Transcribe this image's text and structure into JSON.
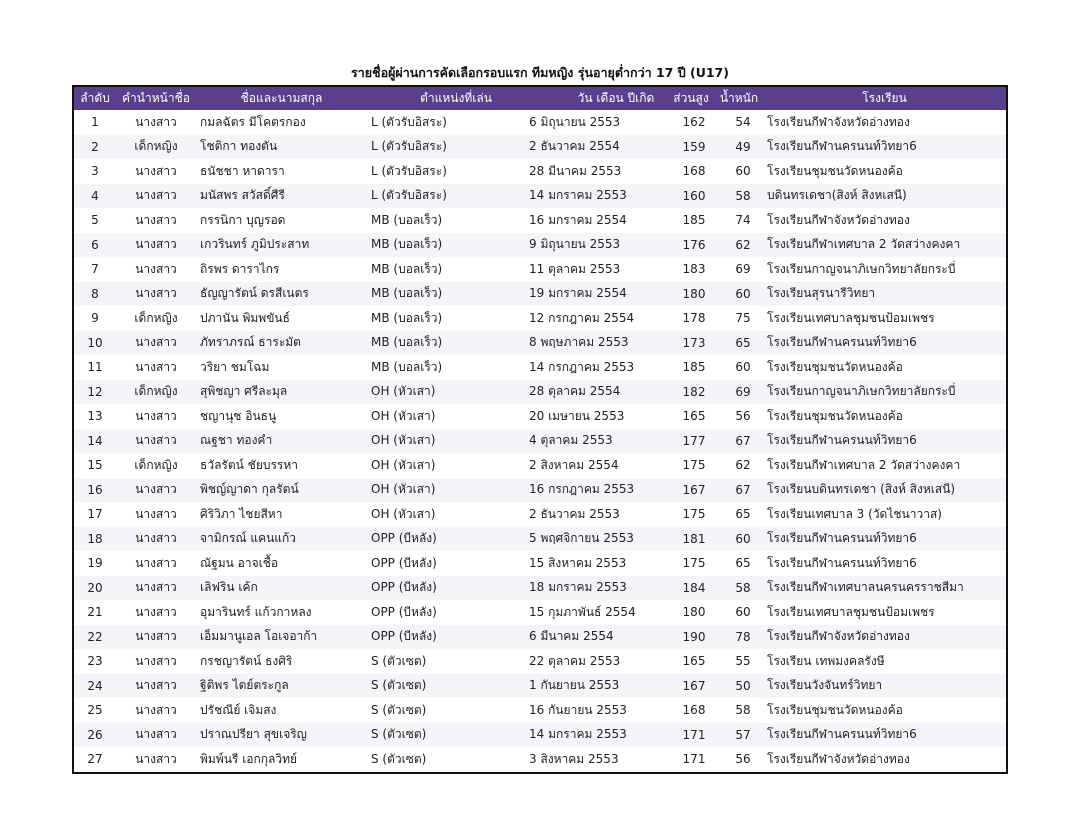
{
  "title": "รายชื่อผู้ผ่านการคัดเลือกรอบแรก ทีมหญิง รุ่นอายุต่ำกว่า 17 ปี (U17)",
  "header_color": "#5b3f8c",
  "columns": [
    "ลำดับ",
    "คำนำหน้าชื่อ",
    "ชื่อและนามสกุล",
    "ตำแหน่งที่เล่น",
    "วัน เดือน ปีเกิด",
    "ส่วนสูง",
    "น้ำหนัก",
    "โรงเรียน"
  ],
  "rows": [
    [
      "1",
      "นางสาว",
      "กมลฉัตร มีโคตรกอง",
      "L (ตัวรับอิสระ)",
      "6 มิถุนายน 2553",
      "162",
      "54",
      "โรงเรียนกีฬาจังหวัดอ่างทอง"
    ],
    [
      "2",
      "เด็กหญิง",
      "โชติกา ทองตัน",
      "L (ตัวรับอิสระ)",
      "2 ธันวาคม 2554",
      "159",
      "49",
      "โรงเรียนกีฬานครนนท์วิทยา6"
    ],
    [
      "3",
      "นางสาว",
      "ธนัชชา หาดารา",
      "L (ตัวรับอิสระ)",
      "28 มีนาคม 2553",
      "168",
      "60",
      "โรงเรียนชุมชนวัดหนองค้อ"
    ],
    [
      "4",
      "นางสาว",
      "มนัสพร สวัสดิ์ศีรี",
      "L (ตัวรับอิสระ)",
      "14 มกราคม 2553",
      "160",
      "58",
      "บดินทรเดชา(สิงห์ สิงหเสนี)"
    ],
    [
      "5",
      "นางสาว",
      "กรรนิกา บุญรอด",
      "MB (บอลเร็ว)",
      "16 มกราคม 2554",
      "185",
      "74",
      "โรงเรียนกีฬาจังหวัดอ่างทอง"
    ],
    [
      "6",
      "นางสาว",
      "เกวรินทร์  ภูมิประสาท",
      "MB (บอลเร็ว)",
      "9 มิถุนายน 2553",
      "176",
      "62",
      "โรงเรียนกีฬาเทศบาล 2 วัดสว่างคงคา"
    ],
    [
      "7",
      "นางสาว",
      "ถิรพร ดาราไกร",
      "MB (บอลเร็ว)",
      "11 ตุลาคม 2553",
      "183",
      "69",
      "โรงเรียนกาญจนาภิเษกวิทยาลัยกระบี่"
    ],
    [
      "8",
      "นางสาว",
      "ธัญญารัตน์ ดรสีเนตร",
      "MB (บอลเร็ว)",
      "19 มกราคม 2554",
      "180",
      "60",
      "โรงเรียนสุรนารีวิทยา"
    ],
    [
      "9",
      "เด็กหญิง",
      "ปภานัน พิมพขันธ์",
      "MB (บอลเร็ว)",
      "12 กรกฎาคม 2554",
      "178",
      "75",
      "โรงเรียนเทศบาลชุมชนป้อมเพชร"
    ],
    [
      "10",
      "นางสาว",
      "ภัทราภรณ์ ธาระมัต",
      "MB (บอลเร็ว)",
      "8 พฤษภาคม 2553",
      "173",
      "65",
      "โรงเรียนกีฬานครนนท์วิทยา6"
    ],
    [
      "11",
      "นางสาว",
      "วริยา ชมโฉม",
      "MB (บอลเร็ว)",
      "14 กรกฎาคม 2553",
      "185",
      "60",
      "โรงเรียนชุมชนวัดหนองค้อ"
    ],
    [
      "12",
      "เด็กหญิง",
      " สุพิชญา ศรีละมุล",
      "OH (หัวเสา)",
      "28 ตุลาคม 2554",
      "182",
      "69",
      "โรงเรียนกาญจนาภิเษกวิทยาลัยกระบี่"
    ],
    [
      "13",
      "นางสาว",
      "ชญานุช อินธนู",
      "OH (หัวเสา)",
      "20 เมษายน 2553",
      "165",
      "56",
      "โรงเรียนชุมชนวัดหนองค้อ"
    ],
    [
      "14",
      "นางสาว",
      "ณฐชา ทองคำ",
      "OH (หัวเสา)",
      "4 ตุลาคม 2553",
      "177",
      "67",
      "โรงเรียนกีฬานครนนท์วิทยา6"
    ],
    [
      "15",
      "เด็กหญิง",
      "ธวัลรัตน์  ชัยบรรหา",
      "OH (หัวเสา)",
      "2 สิงหาคม 2554",
      "175",
      "62",
      "โรงเรียนกีฬาเทศบาล 2 วัดสว่างคงคา"
    ],
    [
      "16",
      "นางสาว",
      "พิชญ์ญาดา  กุลรัตน์",
      "OH (หัวเสา)",
      "16 กรกฎาคม 2553",
      "167",
      "67",
      "โรงเรียนบดินทรเดชา (สิงห์ สิงหเสนี)"
    ],
    [
      "17",
      "นางสาว",
      "ศิริวิภา ไชยสีหา",
      "OH (หัวเสา)",
      "2 ธันวาคม 2553",
      "175",
      "65",
      "โรงเรียนเทศบาล 3 (วัดไชนาวาส)"
    ],
    [
      "18",
      "นางสาว",
      "จามิกรณ์ แคนแก้ว",
      "OPP (บีหลัง)",
      "5 พฤศจิกายน 2553",
      "181",
      "60",
      "โรงเรียนกีฬานครนนท์วิทยา6"
    ],
    [
      "19",
      "นางสาว",
      "ณัฐมน อาจเชื้อ",
      "OPP (บีหลัง)",
      "15 สิงหาคม 2553",
      "175",
      "65",
      "โรงเรียนกีฬานครนนท์วิทยา6"
    ],
    [
      "20",
      "นางสาว",
      "เลิฟริน เค้ก",
      "OPP (บีหลัง)",
      "18 มกราคม 2553",
      "184",
      "58",
      "โรงเรียนกีฬาเทศบาลนครนครราชสีมา"
    ],
    [
      "21",
      "นางสาว",
      "อุมารินทร์ แก้วกาหลง",
      "OPP (บีหลัง)",
      "15 กุมภาพันธ์ 2554",
      "180",
      "60",
      "โรงเรียนเทศบาลชุมชนป้อมเพชร"
    ],
    [
      "22",
      "นางสาว",
      "เอ็มมานูเอล โอเจอาก้า",
      "OPP (บีหลัง)",
      "6 มีนาคม 2554",
      "190",
      "78",
      "โรงเรียนกีฬาจังหวัดอ่างทอง"
    ],
    [
      "23",
      "นางสาว",
      "กรชญารัตน์ ธงศิริ",
      "S (ตัวเซต)",
      "22 ตุลาคม 2553",
      "165",
      "55",
      "โรงเรียน เทพมงคลรังษี"
    ],
    [
      "24",
      "นางสาว",
      "ฐิติพร ไตย์ตระกูล",
      "S (ตัวเซต)",
      "1 กันยายน 2553",
      "167",
      "50",
      "โรงเรียนวังจันทร์วิทยา"
    ],
    [
      "25",
      "นางสาว",
      "ปรัชณีย์ เจิมสง",
      "S (ตัวเซต)",
      "16 กันยายน 2553",
      "168",
      "58",
      "โรงเรียนชุมชนวัดหนองค้อ"
    ],
    [
      "26",
      "นางสาว",
      "ปราณปรียา สุขเจริญ",
      "S (ตัวเซต)",
      "14 มกราคม 2553",
      "171",
      "57",
      "โรงเรียนกีฬานครนนท์วิทยา6"
    ],
    [
      "27",
      "นางสาว",
      "พิมพ์นรี เอกกุลวิทย์",
      "S (ตัวเซต)",
      "3 สิงหาคม 2553",
      "171",
      "56",
      "โรงเรียนกีฬาจังหวัดอ่างทอง"
    ]
  ]
}
